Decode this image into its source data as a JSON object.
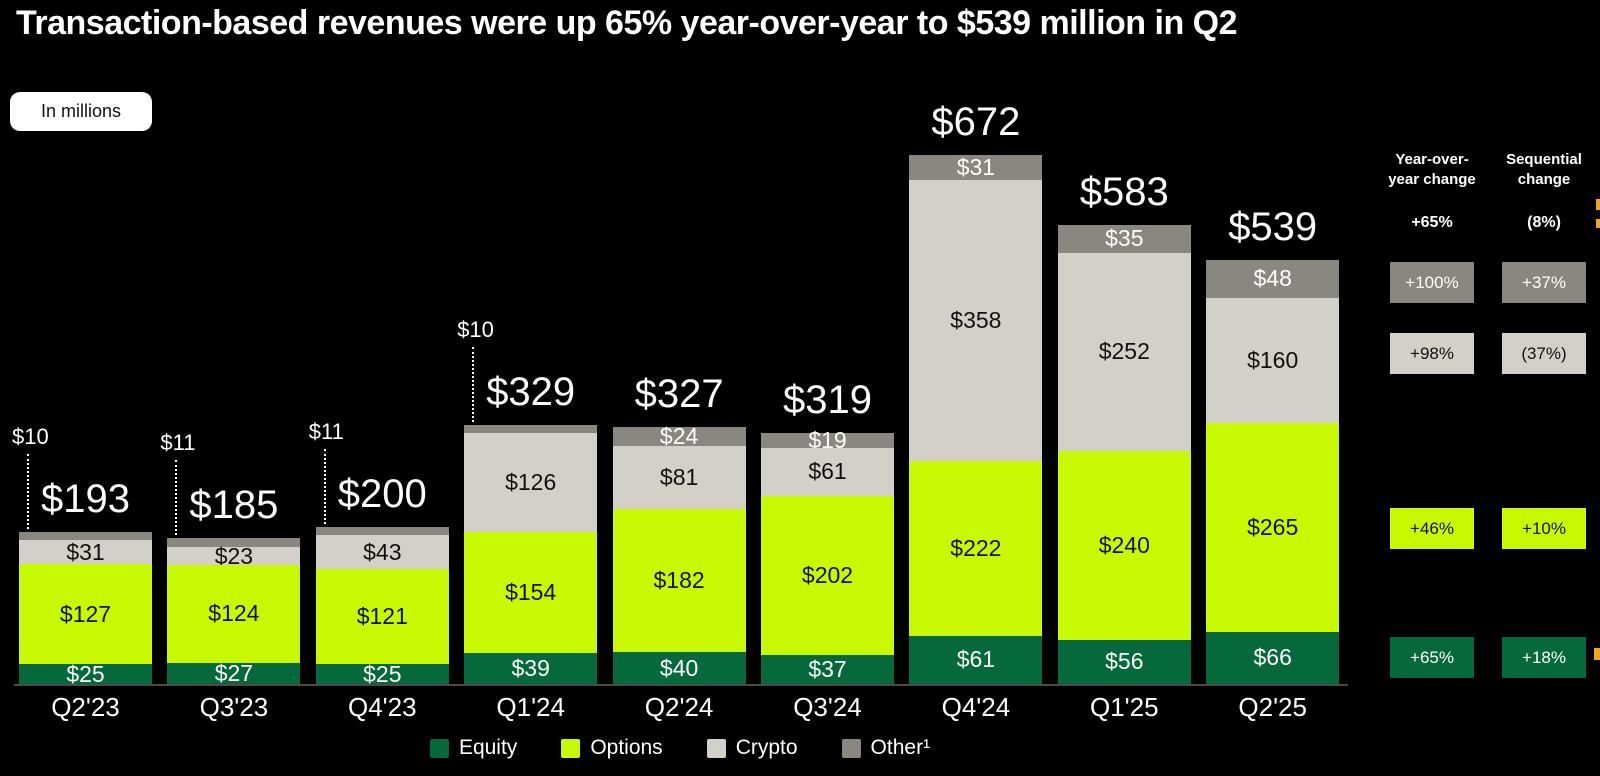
{
  "title": "Transaction-based revenues were up 65% year-over-year to $539 million in Q2",
  "units_badge": "In millions",
  "colors": {
    "background": "#000000",
    "equity": "#06693B",
    "options": "#C9F902",
    "crypto": "#D3CFC9",
    "other": "#8A8680",
    "baseline": "#4A4A48",
    "edge_artifact": "#F0A41F"
  },
  "chart_data": {
    "type": "bar",
    "stacked": true,
    "title": "Transaction-based revenues were up 65% year-over-year to $539 million in Q2",
    "unit": "USD millions",
    "categories": [
      "Q2'23",
      "Q3'23",
      "Q4'23",
      "Q1'24",
      "Q2'24",
      "Q3'24",
      "Q4'24",
      "Q1'25",
      "Q2'25"
    ],
    "series": [
      {
        "name": "Equity",
        "values": [
          25,
          27,
          25,
          39,
          40,
          37,
          61,
          56,
          66
        ]
      },
      {
        "name": "Options",
        "values": [
          127,
          124,
          121,
          154,
          182,
          202,
          222,
          240,
          265
        ]
      },
      {
        "name": "Crypto",
        "values": [
          31,
          23,
          43,
          126,
          81,
          61,
          358,
          252,
          160
        ]
      },
      {
        "name": "Other",
        "values": [
          10,
          11,
          11,
          10,
          24,
          19,
          31,
          35,
          48
        ]
      }
    ],
    "totals": [
      193,
      185,
      200,
      329,
      327,
      319,
      672,
      583,
      539
    ],
    "legend_position": "bottom",
    "grid": false
  },
  "bars": [
    {
      "quarter": "Q2'23",
      "total_label": "$193",
      "equity_label": "$25",
      "options_label": "$127",
      "crypto_label": "$31",
      "other_label": "$10",
      "other_above": true
    },
    {
      "quarter": "Q3'23",
      "total_label": "$185",
      "equity_label": "$27",
      "options_label": "$124",
      "crypto_label": "$23",
      "other_label": "$11",
      "other_above": true
    },
    {
      "quarter": "Q4'23",
      "total_label": "$200",
      "equity_label": "$25",
      "options_label": "$121",
      "crypto_label": "$43",
      "other_label": "$11",
      "other_above": true
    },
    {
      "quarter": "Q1'24",
      "total_label": "$329",
      "equity_label": "$39",
      "options_label": "$154",
      "crypto_label": "$126",
      "other_label": "$10",
      "other_above": true
    },
    {
      "quarter": "Q2'24",
      "total_label": "$327",
      "equity_label": "$40",
      "options_label": "$182",
      "crypto_label": "$81",
      "other_label": "$24",
      "other_above": false
    },
    {
      "quarter": "Q3'24",
      "total_label": "$319",
      "equity_label": "$37",
      "options_label": "$202",
      "crypto_label": "$61",
      "other_label": "$19",
      "other_above": false
    },
    {
      "quarter": "Q4'24",
      "total_label": "$672",
      "equity_label": "$61",
      "options_label": "$222",
      "crypto_label": "$358",
      "other_label": "$31",
      "other_above": false
    },
    {
      "quarter": "Q1'25",
      "total_label": "$583",
      "equity_label": "$56",
      "options_label": "$240",
      "crypto_label": "$252",
      "other_label": "$35",
      "other_above": false
    },
    {
      "quarter": "Q2'25",
      "total_label": "$539",
      "equity_label": "$66",
      "options_label": "$265",
      "crypto_label": "$160",
      "other_label": "$48",
      "other_above": false
    }
  ],
  "legend": {
    "items": [
      {
        "name": "equity",
        "label": "Equity"
      },
      {
        "name": "options",
        "label": "Options"
      },
      {
        "name": "crypto",
        "label": "Crypto"
      },
      {
        "name": "other",
        "label": "Other¹"
      }
    ]
  },
  "change_panel": {
    "yoy_header_line1": "Year-over-",
    "yoy_header_line2": "year change",
    "seq_header_line1": "Sequential",
    "seq_header_line2": "change",
    "yoy_total": "+65%",
    "seq_total": "(8%)",
    "rows": [
      {
        "segment": "other",
        "yoy": "+100%",
        "seq": "+37%"
      },
      {
        "segment": "crypto",
        "yoy": "+98%",
        "seq": "(37%)"
      },
      {
        "segment": "options",
        "yoy": "+46%",
        "seq": "+10%"
      },
      {
        "segment": "equity",
        "yoy": "+65%",
        "seq": "+18%"
      }
    ]
  }
}
